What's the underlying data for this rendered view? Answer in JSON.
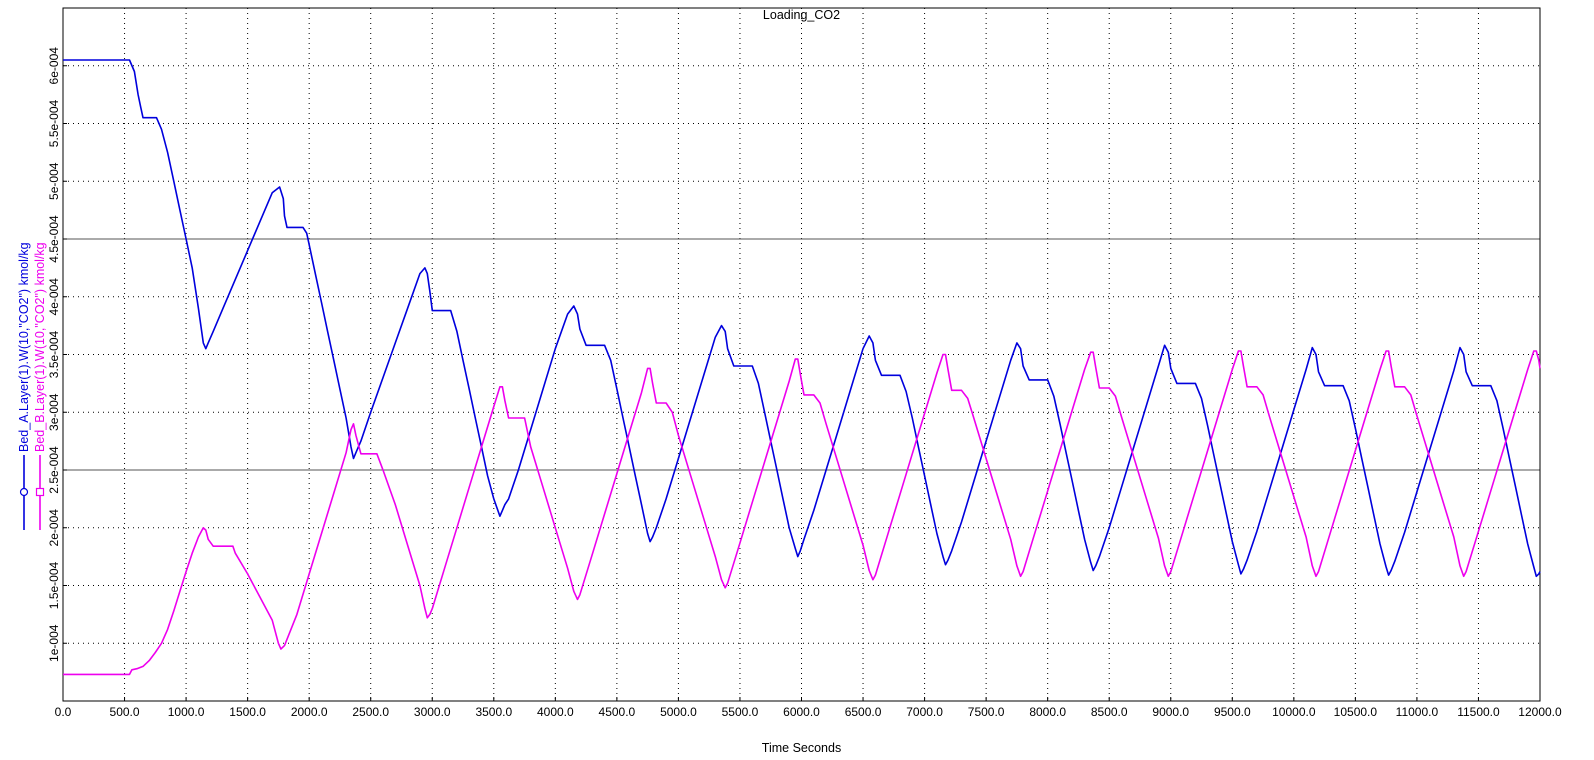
{
  "chart_data": {
    "type": "line",
    "title": "Loading_CO2",
    "xlabel": "Time Seconds",
    "ylabel": "",
    "xlim": [
      0,
      12000
    ],
    "ylim": [
      5e-05,
      0.00065
    ],
    "x_ticks": [
      "0.0",
      "500.0",
      "1000.0",
      "1500.0",
      "2000.0",
      "2500.0",
      "3000.0",
      "3500.0",
      "4000.0",
      "4500.0",
      "5000.0",
      "5500.0",
      "6000.0",
      "6500.0",
      "7000.0",
      "7500.0",
      "8000.0",
      "8500.0",
      "9000.0",
      "9500.0",
      "10000.0",
      "10500.0",
      "11000.0",
      "11500.0",
      "12000.0"
    ],
    "y_ticks": [
      "1e-004",
      "1.5e-004",
      "2e-004",
      "2.5e-004",
      "3e-004",
      "3.5e-004",
      "4e-004",
      "4.5e-004",
      "5e-004",
      "5.5e-004",
      "6e-004"
    ],
    "y_tick_values": [
      0.0001,
      0.00015,
      0.0002,
      0.00025,
      0.0003,
      0.00035,
      0.0004,
      0.00045,
      0.0005,
      0.00055,
      0.0006
    ],
    "grid": true,
    "legend_placement": "left-vertical",
    "series": [
      {
        "name": "Bed_A.Layer(1).W(10,\"CO2\") kmol/kg",
        "color": "#0000dd",
        "marker": "circle",
        "x": [
          0,
          540,
          580,
          610,
          630,
          650,
          680,
          720,
          760,
          800,
          850,
          900,
          950,
          1000,
          1050,
          1100,
          1140,
          1160,
          1180,
          1220,
          1300,
          1400,
          1500,
          1600,
          1700,
          1760,
          1790,
          1800,
          1820,
          1840,
          1900,
          1950,
          1980,
          2000,
          2050,
          2100,
          2150,
          2200,
          2250,
          2300,
          2340,
          2360,
          2380,
          2420,
          2500,
          2600,
          2700,
          2800,
          2900,
          2940,
          2960,
          2980,
          3000,
          3150,
          3200,
          3250,
          3300,
          3350,
          3400,
          3450,
          3500,
          3550,
          3570,
          3590,
          3620,
          3700,
          3800,
          3900,
          4000,
          4100,
          4150,
          4180,
          4200,
          4250,
          4400,
          4450,
          4500,
          4550,
          4600,
          4650,
          4700,
          4750,
          4770,
          4790,
          4820,
          4900,
          5000,
          5100,
          5200,
          5300,
          5350,
          5380,
          5400,
          5450,
          5600,
          5650,
          5700,
          5750,
          5800,
          5850,
          5900,
          5950,
          5970,
          5990,
          6020,
          6100,
          6200,
          6300,
          6400,
          6500,
          6550,
          6580,
          6600,
          6650,
          6800,
          6850,
          6900,
          6950,
          7000,
          7050,
          7100,
          7150,
          7170,
          7190,
          7220,
          7300,
          7400,
          7500,
          7600,
          7700,
          7750,
          7780,
          7800,
          7850,
          8000,
          8050,
          8100,
          8150,
          8200,
          8250,
          8300,
          8350,
          8370,
          8390,
          8420,
          8500,
          8600,
          8700,
          8800,
          8900,
          8950,
          8980,
          9000,
          9050,
          9200,
          9250,
          9300,
          9350,
          9400,
          9450,
          9500,
          9550,
          9570,
          9590,
          9620,
          9700,
          9800,
          9900,
          10000,
          10100,
          10150,
          10180,
          10200,
          10250,
          10400,
          10450,
          10500,
          10550,
          10600,
          10650,
          10700,
          10750,
          10770,
          10790,
          10820,
          10900,
          11000,
          11100,
          11200,
          11300,
          11350,
          11380,
          11400,
          11450,
          11600,
          11650,
          11700,
          11750,
          11800,
          11850,
          11900,
          11950,
          11970,
          11990,
          12000
        ],
        "y": [
          0.000605,
          0.000605,
          0.000595,
          0.000575,
          0.000565,
          0.000555,
          0.000555,
          0.000555,
          0.000555,
          0.000545,
          0.000525,
          0.0005,
          0.000475,
          0.00045,
          0.000425,
          0.00039,
          0.00036,
          0.000355,
          0.00036,
          0.00037,
          0.00039,
          0.000415,
          0.00044,
          0.000465,
          0.00049,
          0.000495,
          0.000485,
          0.00047,
          0.00046,
          0.00046,
          0.00046,
          0.00046,
          0.000455,
          0.000445,
          0.00042,
          0.000395,
          0.00037,
          0.000345,
          0.00032,
          0.000295,
          0.00027,
          0.00026,
          0.000265,
          0.000275,
          0.0003,
          0.00033,
          0.00036,
          0.00039,
          0.00042,
          0.000425,
          0.00042,
          0.000405,
          0.000388,
          0.000388,
          0.00037,
          0.000345,
          0.00032,
          0.000295,
          0.00027,
          0.000245,
          0.000225,
          0.00021,
          0.000215,
          0.00022,
          0.000225,
          0.00025,
          0.000285,
          0.00032,
          0.000355,
          0.000385,
          0.000392,
          0.000385,
          0.000372,
          0.000358,
          0.000358,
          0.000345,
          0.00032,
          0.000295,
          0.00027,
          0.000245,
          0.00022,
          0.000195,
          0.000188,
          0.000192,
          0.0002,
          0.000225,
          0.00026,
          0.000295,
          0.00033,
          0.000365,
          0.000375,
          0.00037,
          0.000355,
          0.00034,
          0.00034,
          0.000325,
          0.0003,
          0.000275,
          0.00025,
          0.000225,
          0.0002,
          0.000182,
          0.000175,
          0.00018,
          0.00019,
          0.000215,
          0.00025,
          0.000285,
          0.00032,
          0.000355,
          0.000366,
          0.00036,
          0.000345,
          0.000332,
          0.000332,
          0.000318,
          0.000295,
          0.00027,
          0.000245,
          0.00022,
          0.000195,
          0.000175,
          0.000168,
          0.000172,
          0.00018,
          0.000205,
          0.00024,
          0.000275,
          0.00031,
          0.000345,
          0.00036,
          0.000355,
          0.00034,
          0.000328,
          0.000328,
          0.000314,
          0.00029,
          0.000265,
          0.00024,
          0.000215,
          0.00019,
          0.00017,
          0.000163,
          0.000167,
          0.000175,
          0.0002,
          0.000235,
          0.00027,
          0.000305,
          0.00034,
          0.000358,
          0.000352,
          0.000338,
          0.000325,
          0.000325,
          0.000312,
          0.000288,
          0.000263,
          0.000238,
          0.000213,
          0.000188,
          0.000168,
          0.00016,
          0.000164,
          0.000172,
          0.000197,
          0.000232,
          0.000267,
          0.000302,
          0.000337,
          0.000356,
          0.00035,
          0.000335,
          0.000323,
          0.000323,
          0.00031,
          0.000286,
          0.000261,
          0.000236,
          0.000211,
          0.000186,
          0.000166,
          0.000159,
          0.000163,
          0.000171,
          0.000196,
          0.000231,
          0.000266,
          0.000301,
          0.000336,
          0.000356,
          0.00035,
          0.000335,
          0.000323,
          0.000323,
          0.00031,
          0.000286,
          0.000261,
          0.000236,
          0.000211,
          0.000186,
          0.000166,
          0.000158,
          0.00016,
          0.000162
        ]
      },
      {
        "name": "Bed_B.Layer(1).W(10,\"CO2\") kmol/kg",
        "color": "#ee00ee",
        "marker": "square",
        "x": [
          0,
          540,
          560,
          600,
          650,
          700,
          750,
          800,
          850,
          900,
          950,
          1000,
          1050,
          1100,
          1140,
          1160,
          1180,
          1220,
          1300,
          1380,
          1400,
          1500,
          1600,
          1700,
          1750,
          1770,
          1800,
          1900,
          2000,
          2100,
          2200,
          2300,
          2340,
          2360,
          2380,
          2420,
          2500,
          2550,
          2600,
          2700,
          2800,
          2900,
          2940,
          2960,
          2980,
          3000,
          3100,
          3200,
          3300,
          3400,
          3500,
          3550,
          3570,
          3590,
          3620,
          3700,
          3750,
          3800,
          3900,
          4000,
          4100,
          4150,
          4180,
          4200,
          4300,
          4400,
          4500,
          4600,
          4700,
          4750,
          4770,
          4790,
          4820,
          4900,
          4950,
          5000,
          5100,
          5200,
          5300,
          5350,
          5380,
          5400,
          5500,
          5600,
          5700,
          5800,
          5900,
          5950,
          5970,
          5990,
          6020,
          6100,
          6150,
          6200,
          6300,
          6400,
          6500,
          6550,
          6580,
          6600,
          6700,
          6800,
          6900,
          7000,
          7100,
          7150,
          7170,
          7190,
          7220,
          7300,
          7350,
          7400,
          7500,
          7600,
          7700,
          7750,
          7780,
          7800,
          7900,
          8000,
          8100,
          8200,
          8300,
          8350,
          8370,
          8390,
          8420,
          8500,
          8550,
          8600,
          8700,
          8800,
          8900,
          8950,
          8980,
          9000,
          9100,
          9200,
          9300,
          9400,
          9500,
          9550,
          9570,
          9590,
          9620,
          9700,
          9750,
          9800,
          9900,
          10000,
          10100,
          10150,
          10180,
          10200,
          10300,
          10400,
          10500,
          10600,
          10700,
          10750,
          10770,
          10790,
          10820,
          10900,
          10950,
          11000,
          11100,
          11200,
          11300,
          11350,
          11380,
          11400,
          11500,
          11600,
          11700,
          11800,
          11900,
          11950,
          11970,
          11990,
          12000
        ],
        "y": [
          7.3e-05,
          7.3e-05,
          7.7e-05,
          7.8e-05,
          8e-05,
          8.5e-05,
          9.2e-05,
          0.0001,
          0.000112,
          0.000128,
          0.000145,
          0.000162,
          0.000178,
          0.000192,
          0.0002,
          0.000198,
          0.00019,
          0.000184,
          0.000184,
          0.000184,
          0.000178,
          0.00016,
          0.00014,
          0.00012,
          0.0001,
          9.5e-05,
          9.8e-05,
          0.000125,
          0.00016,
          0.000195,
          0.00023,
          0.000265,
          0.000285,
          0.00029,
          0.00028,
          0.000264,
          0.000264,
          0.000264,
          0.00025,
          0.00022,
          0.000185,
          0.00015,
          0.00013,
          0.000122,
          0.000125,
          0.00013,
          0.000165,
          0.0002,
          0.000235,
          0.00027,
          0.000305,
          0.000322,
          0.000322,
          0.00031,
          0.000295,
          0.000295,
          0.000295,
          0.00027,
          0.000235,
          0.0002,
          0.000165,
          0.000145,
          0.000138,
          0.000142,
          0.000177,
          0.000212,
          0.000247,
          0.000282,
          0.000317,
          0.000338,
          0.000338,
          0.000325,
          0.000308,
          0.000308,
          0.0003,
          0.00028,
          0.000245,
          0.00021,
          0.000175,
          0.000155,
          0.000148,
          0.000152,
          0.000187,
          0.000222,
          0.000257,
          0.000292,
          0.000327,
          0.000346,
          0.000346,
          0.000333,
          0.000315,
          0.000315,
          0.000308,
          0.00029,
          0.000255,
          0.00022,
          0.000185,
          0.000163,
          0.000155,
          0.000159,
          0.000194,
          0.000229,
          0.000264,
          0.000299,
          0.000334,
          0.00035,
          0.00035,
          0.000337,
          0.000319,
          0.000319,
          0.000312,
          0.000295,
          0.00026,
          0.000225,
          0.00019,
          0.000167,
          0.000158,
          0.000162,
          0.000197,
          0.000232,
          0.000267,
          0.000302,
          0.000337,
          0.000352,
          0.000352,
          0.000339,
          0.000321,
          0.000321,
          0.000314,
          0.000296,
          0.000261,
          0.000226,
          0.000191,
          0.000167,
          0.000158,
          0.000162,
          0.000197,
          0.000232,
          0.000267,
          0.000302,
          0.000337,
          0.000353,
          0.000353,
          0.00034,
          0.000322,
          0.000322,
          0.000315,
          0.000297,
          0.000262,
          0.000227,
          0.000192,
          0.000167,
          0.000158,
          0.000162,
          0.000197,
          0.000232,
          0.000267,
          0.000302,
          0.000337,
          0.000353,
          0.000353,
          0.00034,
          0.000322,
          0.000322,
          0.000315,
          0.000297,
          0.000262,
          0.000227,
          0.000192,
          0.000167,
          0.000158,
          0.000162,
          0.000197,
          0.000232,
          0.000267,
          0.000302,
          0.000337,
          0.000353,
          0.000353,
          0.000345,
          0.000338
        ]
      }
    ]
  }
}
